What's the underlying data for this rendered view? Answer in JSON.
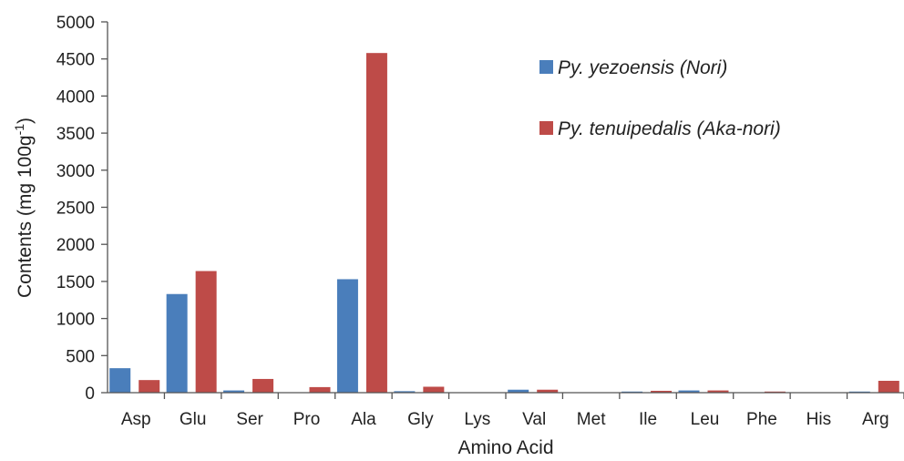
{
  "chart_data": {
    "type": "bar",
    "categories": [
      "Asp",
      "Glu",
      "Ser",
      "Pro",
      "Ala",
      "Gly",
      "Lys",
      "Val",
      "Met",
      "Ile",
      "Leu",
      "Phe",
      "His",
      "Arg"
    ],
    "series": [
      {
        "name": "Py. yezoensis (Nori)",
        "color": "#4a7ebb",
        "values": [
          330,
          1330,
          30,
          0,
          1530,
          20,
          0,
          40,
          0,
          15,
          30,
          0,
          0,
          15
        ]
      },
      {
        "name": "Py. tenuipedalis (Aka-nori)",
        "color": "#be4b48",
        "values": [
          170,
          1640,
          185,
          75,
          4580,
          80,
          0,
          40,
          0,
          25,
          30,
          15,
          0,
          160
        ]
      }
    ],
    "y_ticks": [
      "0",
      "500",
      "1000",
      "1500",
      "2000",
      "2500",
      "3000",
      "3500",
      "4000",
      "4500",
      "5000"
    ],
    "xlabel": "Amino Acid",
    "ylabel": {
      "main": "Contents (mg 100g",
      "superscript": "-1",
      "close": ")"
    },
    "ylim": [
      0,
      5000
    ],
    "grid": false,
    "legend_position": "top-right"
  }
}
